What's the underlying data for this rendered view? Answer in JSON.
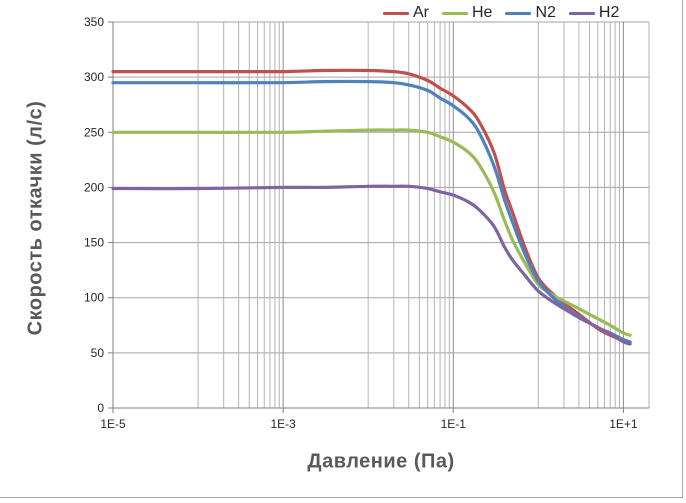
{
  "legend": {
    "items": [
      {
        "label": "Ar",
        "color": "#c0504d"
      },
      {
        "label": "He",
        "color": "#9bbb59"
      },
      {
        "label": "N2",
        "color": "#4f81bd"
      },
      {
        "label": "H2",
        "color": "#8064a2"
      }
    ]
  },
  "chart_data": {
    "type": "line",
    "title": "",
    "xlabel": "Давление (Па)",
    "ylabel": "Скорость откачки (л/с)",
    "x_scale": "log",
    "xlim": [
      1e-05,
      20
    ],
    "ylim": [
      0,
      350
    ],
    "x_tick_values": [
      1e-05,
      0.001,
      0.1,
      10
    ],
    "x_tick_labels": [
      "1E-5",
      "1E-3",
      "1E-1",
      "1E+1"
    ],
    "y_ticks": [
      0,
      50,
      100,
      150,
      200,
      250,
      300,
      350
    ],
    "grid": {
      "y_step": 50,
      "minor_decades": [
        -4,
        -2,
        0
      ],
      "minor_color": "#b3b3b3",
      "major_x_values": [
        0.001,
        0.1,
        10
      ],
      "major_color": "#8c8c8c",
      "axis_color": "#808080",
      "tick_label_color": "#262626"
    },
    "legend_position": "top",
    "x": [
      1e-05,
      0.0001,
      0.001,
      0.003,
      0.01,
      0.02,
      0.03,
      0.05,
      0.07,
      0.1,
      0.15,
      0.2,
      0.3,
      0.4,
      0.5,
      0.7,
      1,
      1.5,
      2,
      3,
      5,
      7,
      10,
      12
    ],
    "series": [
      {
        "name": "Ar",
        "color": "#c0504d",
        "values": [
          305,
          305,
          305,
          306,
          306,
          305,
          303,
          297,
          290,
          283,
          272,
          260,
          232,
          198,
          177,
          145,
          118,
          103,
          95,
          85,
          72,
          66,
          61,
          59
        ]
      },
      {
        "name": "He",
        "color": "#9bbb59",
        "values": [
          250,
          250,
          250,
          251,
          252,
          252,
          252,
          250,
          246,
          241,
          232,
          221,
          196,
          170,
          152,
          131,
          112,
          102,
          97,
          90,
          81,
          75,
          68,
          66
        ]
      },
      {
        "name": "N2",
        "color": "#4f81bd",
        "values": [
          295,
          295,
          295,
          296,
          296,
          295,
          293,
          288,
          281,
          274,
          263,
          250,
          220,
          189,
          168,
          139,
          115,
          100,
          92,
          83,
          73,
          68,
          62,
          60
        ]
      },
      {
        "name": "H2",
        "color": "#8064a2",
        "values": [
          199,
          199,
          200,
          200,
          201,
          201,
          201,
          199,
          196,
          193,
          187,
          180,
          165,
          146,
          134,
          120,
          106,
          96,
          90,
          82,
          73,
          67,
          60,
          58
        ]
      }
    ]
  }
}
